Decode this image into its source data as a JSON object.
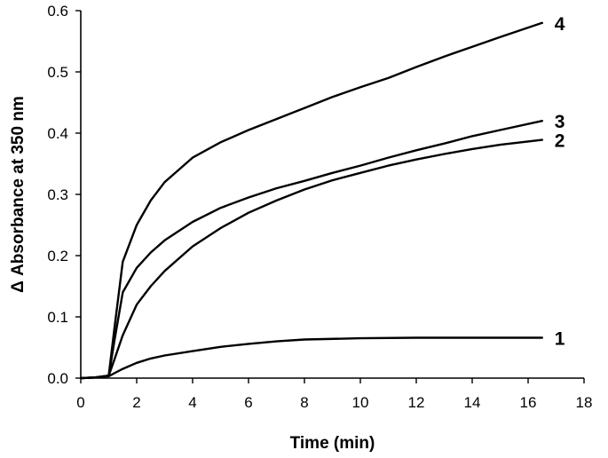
{
  "chart_data": {
    "type": "line",
    "title": "",
    "xlabel": "Time (min)",
    "ylabel": "Δ Absorbance at 350 nm",
    "xlim": [
      0,
      18
    ],
    "ylim": [
      0,
      0.6
    ],
    "x_ticks": [
      0,
      2,
      4,
      6,
      8,
      10,
      12,
      14,
      16,
      18
    ],
    "x_tick_labels": [
      "0",
      "2",
      "4",
      "6",
      "8",
      "10",
      "12",
      "14",
      "16",
      "18"
    ],
    "y_ticks": [
      0,
      0.1,
      0.2,
      0.3,
      0.4,
      0.5,
      0.6
    ],
    "y_tick_labels": [
      "0.0",
      "0.1",
      "0.2",
      "0.3",
      "0.4",
      "0.5",
      "0.6"
    ],
    "grid": false,
    "legend": "none",
    "line_color": "#000000",
    "series": [
      {
        "label": "1",
        "x": [
          0,
          0.5,
          1.0,
          1.2,
          1.5,
          2.0,
          2.5,
          3.0,
          4.0,
          5.0,
          6.0,
          7.0,
          8.0,
          10.0,
          12.0,
          14.0,
          16.5
        ],
        "y": [
          0,
          0.001,
          0.003,
          0.008,
          0.015,
          0.025,
          0.032,
          0.037,
          0.044,
          0.051,
          0.056,
          0.06,
          0.063,
          0.065,
          0.066,
          0.066,
          0.066
        ]
      },
      {
        "label": "2",
        "x": [
          0,
          0.5,
          1.0,
          1.2,
          1.5,
          2.0,
          2.5,
          3.0,
          4.0,
          5.0,
          6.0,
          7.0,
          8.0,
          9.0,
          10.0,
          11.0,
          12.0,
          13.0,
          14.0,
          15.0,
          16.5
        ],
        "y": [
          0,
          0.001,
          0.004,
          0.03,
          0.07,
          0.12,
          0.15,
          0.175,
          0.215,
          0.245,
          0.27,
          0.29,
          0.308,
          0.323,
          0.335,
          0.347,
          0.357,
          0.366,
          0.374,
          0.381,
          0.389
        ]
      },
      {
        "label": "3",
        "x": [
          0,
          0.5,
          1.0,
          1.2,
          1.5,
          2.0,
          2.5,
          3.0,
          4.0,
          5.0,
          6.0,
          7.0,
          8.0,
          9.0,
          10.0,
          11.0,
          12.0,
          13.0,
          14.0,
          15.0,
          16.5
        ],
        "y": [
          0,
          0.001,
          0.004,
          0.06,
          0.14,
          0.18,
          0.205,
          0.225,
          0.255,
          0.278,
          0.295,
          0.31,
          0.322,
          0.335,
          0.347,
          0.36,
          0.372,
          0.383,
          0.395,
          0.405,
          0.42
        ]
      },
      {
        "label": "4",
        "x": [
          0,
          0.5,
          1.0,
          1.2,
          1.5,
          2.0,
          2.5,
          3.0,
          3.5,
          4.0,
          5.0,
          6.0,
          7.0,
          8.0,
          9.0,
          10.0,
          11.0,
          12.0,
          13.0,
          14.0,
          15.0,
          16.5
        ],
        "y": [
          0,
          0.001,
          0.004,
          0.08,
          0.19,
          0.25,
          0.29,
          0.32,
          0.34,
          0.36,
          0.385,
          0.405,
          0.423,
          0.441,
          0.459,
          0.475,
          0.49,
          0.508,
          0.525,
          0.541,
          0.557,
          0.58
        ]
      }
    ]
  }
}
